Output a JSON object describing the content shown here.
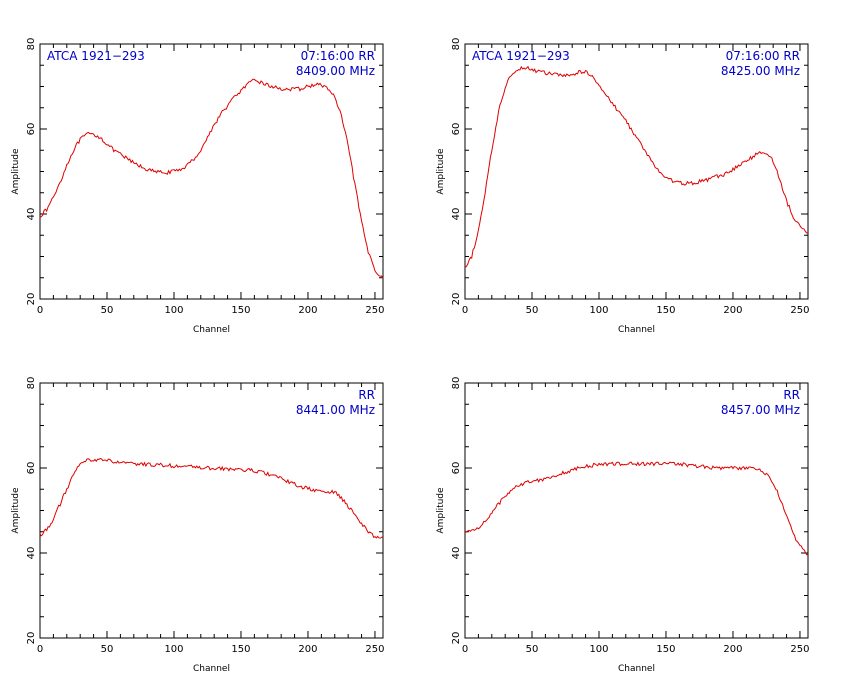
{
  "figure": {
    "panels": [
      {
        "id": "p1",
        "annot_left": "ATCA 1921−293",
        "annot_right1": "07:16:00  RR",
        "annot_right2": "8409.00  MHz"
      },
      {
        "id": "p2",
        "annot_left": "ATCA 1921−293",
        "annot_right1": "07:16:00  RR",
        "annot_right2": "8425.00  MHz"
      },
      {
        "id": "p3",
        "annot_left": "",
        "annot_right1": "RR",
        "annot_right2": "8441.00  MHz"
      },
      {
        "id": "p4",
        "annot_left": "",
        "annot_right1": "RR",
        "annot_right2": "8457.00  MHz"
      }
    ]
  },
  "chart_data": [
    {
      "type": "line",
      "xlabel": "Channel",
      "ylabel": "Amplitude",
      "xlim": [
        0,
        256
      ],
      "ylim": [
        20,
        80
      ],
      "xticks": [
        0,
        50,
        100,
        150,
        200,
        250
      ],
      "yticks": [
        20,
        40,
        60,
        80
      ],
      "annotation_left": "ATCA 1921−293",
      "annotation_right": [
        "07:16:00  RR",
        "8409.00  MHz"
      ],
      "color": "#e00000",
      "series": [
        {
          "x": [
            0,
            5,
            10,
            15,
            20,
            25,
            30,
            35,
            40,
            45,
            50,
            55,
            60,
            65,
            70,
            75,
            80,
            85,
            90,
            95,
            100,
            105,
            110,
            115,
            120,
            125,
            130,
            135,
            140,
            145,
            150,
            155,
            160,
            165,
            170,
            175,
            180,
            185,
            190,
            195,
            200,
            205,
            210,
            215,
            220,
            225,
            230,
            235,
            240,
            245,
            250,
            255
          ],
          "values": [
            39.5,
            41,
            44,
            47.5,
            51.5,
            55,
            57.5,
            58.8,
            58.7,
            58,
            56.5,
            55,
            54,
            53,
            52,
            51.2,
            50.5,
            50,
            49.8,
            49.8,
            50,
            50.5,
            51.5,
            53,
            55,
            58,
            61,
            63.5,
            65.5,
            67.5,
            69,
            70.5,
            71.5,
            71,
            70.3,
            69.8,
            69.5,
            69.3,
            69.3,
            69.5,
            70,
            70.5,
            70.3,
            69.5,
            67.5,
            63,
            56,
            47,
            38,
            31,
            27,
            25
          ]
        }
      ]
    },
    {
      "type": "line",
      "xlabel": "Channel",
      "ylabel": "Amplitude",
      "xlim": [
        0,
        256
      ],
      "ylim": [
        20,
        80
      ],
      "xticks": [
        0,
        50,
        100,
        150,
        200,
        250
      ],
      "yticks": [
        20,
        40,
        60,
        80
      ],
      "annotation_left": "ATCA 1921−293",
      "annotation_right": [
        "07:16:00  RR",
        "8425.00  MHz"
      ],
      "color": "#e00000",
      "series": [
        {
          "x": [
            0,
            5,
            10,
            15,
            20,
            25,
            30,
            35,
            40,
            45,
            50,
            55,
            60,
            65,
            70,
            75,
            80,
            85,
            90,
            95,
            100,
            105,
            110,
            115,
            120,
            125,
            130,
            135,
            140,
            145,
            150,
            155,
            160,
            165,
            170,
            175,
            180,
            185,
            190,
            195,
            200,
            205,
            210,
            215,
            220,
            225,
            230,
            235,
            240,
            245,
            250,
            255
          ],
          "values": [
            27,
            30,
            36,
            45,
            55,
            64,
            70,
            73,
            74.3,
            74.5,
            74,
            73.5,
            73.2,
            73,
            72.7,
            72.5,
            72.8,
            73.3,
            73.5,
            72.5,
            70.5,
            68,
            66,
            64,
            62,
            59.5,
            57,
            54.5,
            52,
            50,
            48.5,
            47.8,
            47.3,
            47.2,
            47.3,
            47.6,
            48,
            48.5,
            49,
            49.5,
            50.5,
            51.5,
            52.5,
            53.5,
            54.5,
            54.5,
            52.5,
            48,
            43,
            39.5,
            37,
            35.8
          ]
        }
      ]
    },
    {
      "type": "line",
      "xlabel": "Channel",
      "ylabel": "Amplitude",
      "xlim": [
        0,
        256
      ],
      "ylim": [
        20,
        80
      ],
      "xticks": [
        0,
        50,
        100,
        150,
        200,
        250
      ],
      "yticks": [
        20,
        40,
        60,
        80
      ],
      "annotation_right": [
        "RR",
        "8441.00  MHz"
      ],
      "color": "#e00000",
      "series": [
        {
          "x": [
            0,
            5,
            10,
            15,
            20,
            25,
            30,
            35,
            40,
            45,
            50,
            55,
            60,
            65,
            70,
            75,
            80,
            85,
            90,
            95,
            100,
            105,
            110,
            115,
            120,
            125,
            130,
            135,
            140,
            145,
            150,
            155,
            160,
            165,
            170,
            175,
            180,
            185,
            190,
            195,
            200,
            205,
            210,
            215,
            220,
            225,
            230,
            235,
            240,
            245,
            250,
            255
          ],
          "values": [
            44.2,
            45.5,
            48,
            51.5,
            55,
            58.5,
            60.8,
            61.8,
            62,
            62,
            61.8,
            61.5,
            61.2,
            61,
            61,
            60.9,
            60.8,
            60.8,
            60.7,
            60.6,
            60.5,
            60.4,
            60.3,
            60.2,
            60.1,
            60,
            59.9,
            59.8,
            59.8,
            59.7,
            59.6,
            59.5,
            59.3,
            59,
            58.6,
            58.1,
            57.5,
            56.8,
            56.2,
            55.6,
            55.1,
            54.7,
            54.5,
            54.4,
            54.2,
            53,
            51,
            49,
            47,
            45,
            43.8,
            43.5
          ]
        }
      ]
    },
    {
      "type": "line",
      "xlabel": "Channel",
      "ylabel": "Amplitude",
      "xlim": [
        0,
        256
      ],
      "ylim": [
        20,
        80
      ],
      "xticks": [
        0,
        50,
        100,
        150,
        200,
        250
      ],
      "yticks": [
        20,
        40,
        60,
        80
      ],
      "annotation_right": [
        "RR",
        "8457.00  MHz"
      ],
      "color": "#e00000",
      "series": [
        {
          "x": [
            0,
            5,
            10,
            15,
            20,
            25,
            30,
            35,
            40,
            45,
            50,
            55,
            60,
            65,
            70,
            75,
            80,
            85,
            90,
            95,
            100,
            105,
            110,
            115,
            120,
            125,
            130,
            135,
            140,
            145,
            150,
            155,
            160,
            165,
            170,
            175,
            180,
            185,
            190,
            195,
            200,
            205,
            210,
            215,
            220,
            225,
            230,
            235,
            240,
            245,
            250,
            255
          ],
          "values": [
            44.8,
            45.2,
            46,
            47.5,
            49.5,
            51.5,
            53.5,
            55,
            56,
            56.5,
            57,
            57.2,
            57.5,
            58,
            58.5,
            59,
            59.5,
            60,
            60.3,
            60.6,
            60.8,
            61,
            61,
            61,
            61,
            61,
            61,
            61,
            61,
            61,
            61,
            61,
            61,
            60.8,
            60.6,
            60.4,
            60.2,
            60.1,
            60,
            60,
            60,
            60,
            60,
            59.8,
            59.5,
            58.5,
            56.5,
            53,
            48.5,
            44.5,
            41.5,
            40
          ]
        }
      ]
    }
  ]
}
